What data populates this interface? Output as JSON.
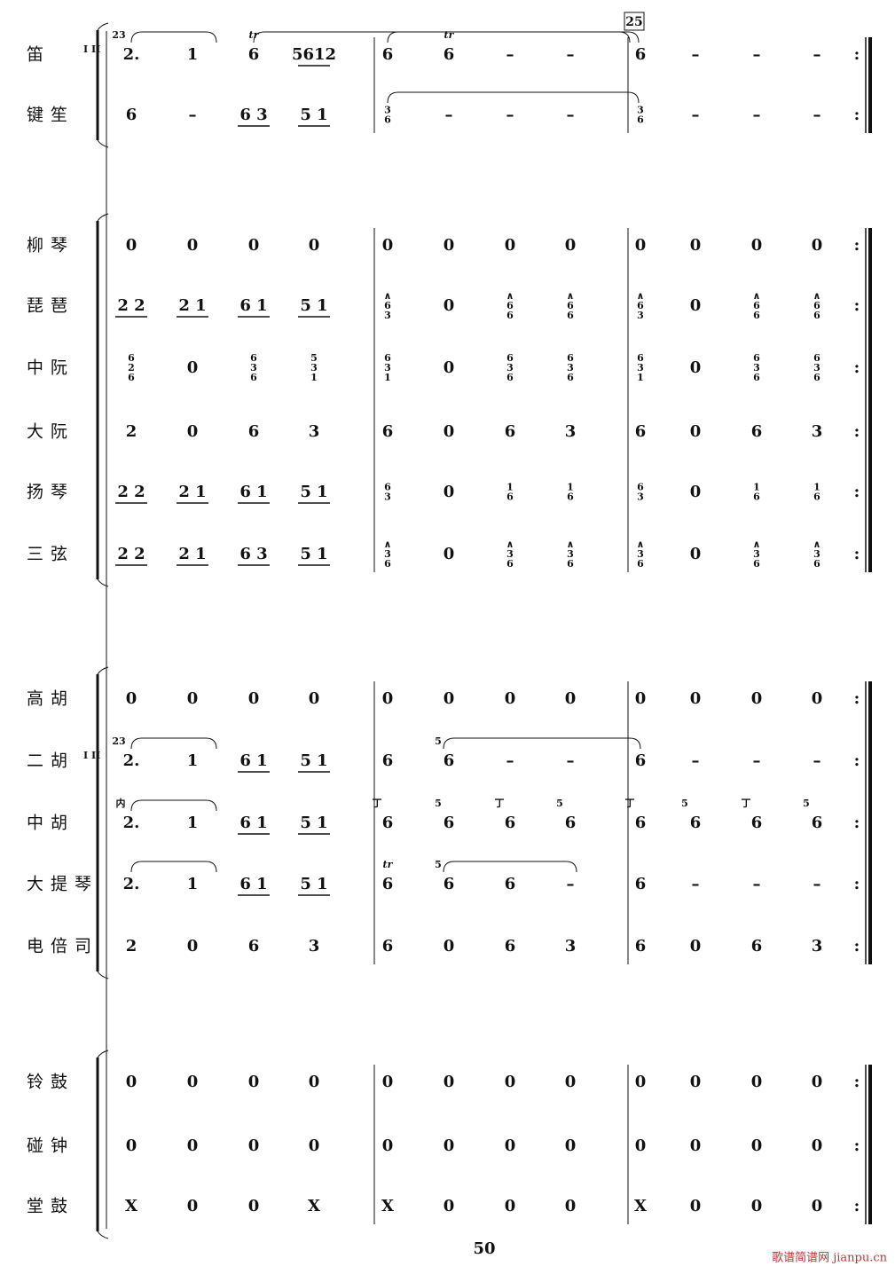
{
  "score": {
    "rehearsal_mark": "25",
    "page_number": "50",
    "watermark": "歌谱简谱网 jianpu.cn",
    "rows": [
      {
        "name": "笛",
        "parts": "I II",
        "beats": [
          "2.",
          "1",
          "6",
          "5612",
          "6",
          "6",
          "–",
          "–",
          "6",
          "–",
          "–",
          "–"
        ],
        "ornaments": [
          {
            "beat": 0,
            "text": "23"
          },
          {
            "beat": 2,
            "text": "tr"
          },
          {
            "beat": 5,
            "text": "tr"
          }
        ]
      },
      {
        "name": "键笙",
        "beats": [
          "6",
          "–",
          "6 3",
          "5 1",
          [
            "3",
            "6"
          ],
          "–",
          "–",
          "–",
          [
            "3",
            "6"
          ],
          "–",
          "–",
          "–"
        ]
      },
      {
        "name": "柳琴",
        "beats": [
          "0",
          "0",
          "0",
          "0",
          "0",
          "0",
          "0",
          "0",
          "0",
          "0",
          "0",
          "0"
        ]
      },
      {
        "name": "琵琶",
        "beats": [
          "2 2",
          "2 1",
          "6 1",
          "5 1",
          [
            "∧",
            "6",
            "3"
          ],
          "0",
          [
            "∧",
            "6",
            "6"
          ],
          [
            "∧",
            "6",
            "6"
          ],
          [
            "∧",
            "6",
            "3"
          ],
          "0",
          [
            "∧",
            "6",
            "6"
          ],
          [
            "∧",
            "6",
            "6"
          ]
        ]
      },
      {
        "name": "中阮",
        "beats": [
          [
            "6",
            "2",
            "6"
          ],
          "0",
          [
            "6",
            "3",
            "6"
          ],
          [
            "5",
            "3",
            "1"
          ],
          [
            "6",
            "3",
            "1"
          ],
          "0",
          [
            "6",
            "3",
            "6"
          ],
          [
            "6",
            "3",
            "6"
          ],
          [
            "6",
            "3",
            "1"
          ],
          "0",
          [
            "6",
            "3",
            "6"
          ],
          [
            "6",
            "3",
            "6"
          ]
        ]
      },
      {
        "name": "大阮",
        "beats": [
          "2",
          "0",
          "6",
          "3",
          "6",
          "0",
          "6",
          "3",
          "6",
          "0",
          "6",
          "3"
        ]
      },
      {
        "name": "扬琴",
        "beats": [
          "2 2",
          "2 1",
          "6 1",
          "5 1",
          [
            "6",
            "3"
          ],
          "0",
          [
            "1",
            "6"
          ],
          [
            "1",
            "6"
          ],
          [
            "6",
            "3"
          ],
          "0",
          [
            "1",
            "6"
          ],
          [
            "1",
            "6"
          ]
        ]
      },
      {
        "name": "三弦",
        "beats": [
          "2 2",
          "2 1",
          "6 3",
          "5 1",
          [
            "∧",
            "3",
            "6"
          ],
          "0",
          [
            "∧",
            "3",
            "6"
          ],
          [
            "∧",
            "3",
            "6"
          ],
          [
            "∧",
            "3",
            "6"
          ],
          "0",
          [
            "∧",
            "3",
            "6"
          ],
          [
            "∧",
            "3",
            "6"
          ]
        ]
      },
      {
        "name": "高胡",
        "beats": [
          "0",
          "0",
          "0",
          "0",
          "0",
          "0",
          "0",
          "0",
          "0",
          "0",
          "0",
          "0"
        ]
      },
      {
        "name": "二胡",
        "parts": "I II",
        "beats": [
          "2.",
          "1",
          "6 1",
          "5 1",
          "6",
          "6",
          "–",
          "–",
          "6",
          "–",
          "–",
          "–"
        ],
        "ornaments": [
          {
            "beat": 0,
            "text": "23"
          },
          {
            "beat": 5,
            "text": "5"
          }
        ]
      },
      {
        "name": "中胡",
        "beats": [
          "2.",
          "1",
          "6 1",
          "5 1",
          "6",
          "6",
          "6",
          "6",
          "6",
          "6",
          "6",
          "6"
        ],
        "ornaments": [
          {
            "beat": 0,
            "text": "内"
          },
          {
            "beat": 4,
            "text": "丁"
          },
          {
            "beat": 5,
            "text": "5"
          },
          {
            "beat": 6,
            "text": "丁"
          },
          {
            "beat": 7,
            "text": "5"
          },
          {
            "beat": 8,
            "text": "丁"
          },
          {
            "beat": 9,
            "text": "5"
          },
          {
            "beat": 10,
            "text": "丁"
          },
          {
            "beat": 11,
            "text": "5"
          }
        ]
      },
      {
        "name": "大提琴",
        "beats": [
          "2.",
          "1",
          "6 1",
          "5 1",
          "6",
          "6",
          "6",
          "–",
          "6",
          "–",
          "–",
          "–"
        ],
        "ornaments": [
          {
            "beat": 4,
            "text": "tr"
          },
          {
            "beat": 5,
            "text": "5"
          }
        ]
      },
      {
        "name": "电倍司",
        "beats": [
          "2",
          "0",
          "6",
          "3",
          "6",
          "0",
          "6",
          "3",
          "6",
          "0",
          "6",
          "3"
        ]
      },
      {
        "name": "铃鼓",
        "beats": [
          "0",
          "0",
          "0",
          "0",
          "0",
          "0",
          "0",
          "0",
          "0",
          "0",
          "0",
          "0"
        ]
      },
      {
        "name": "碰钟",
        "beats": [
          "0",
          "0",
          "0",
          "0",
          "0",
          "0",
          "0",
          "0",
          "0",
          "0",
          "0",
          "0"
        ]
      },
      {
        "name": "堂鼓",
        "beats": [
          "X",
          "0",
          "0",
          "X",
          "X",
          "0",
          "0",
          "0",
          "X",
          "0",
          "0",
          "0"
        ]
      }
    ]
  }
}
